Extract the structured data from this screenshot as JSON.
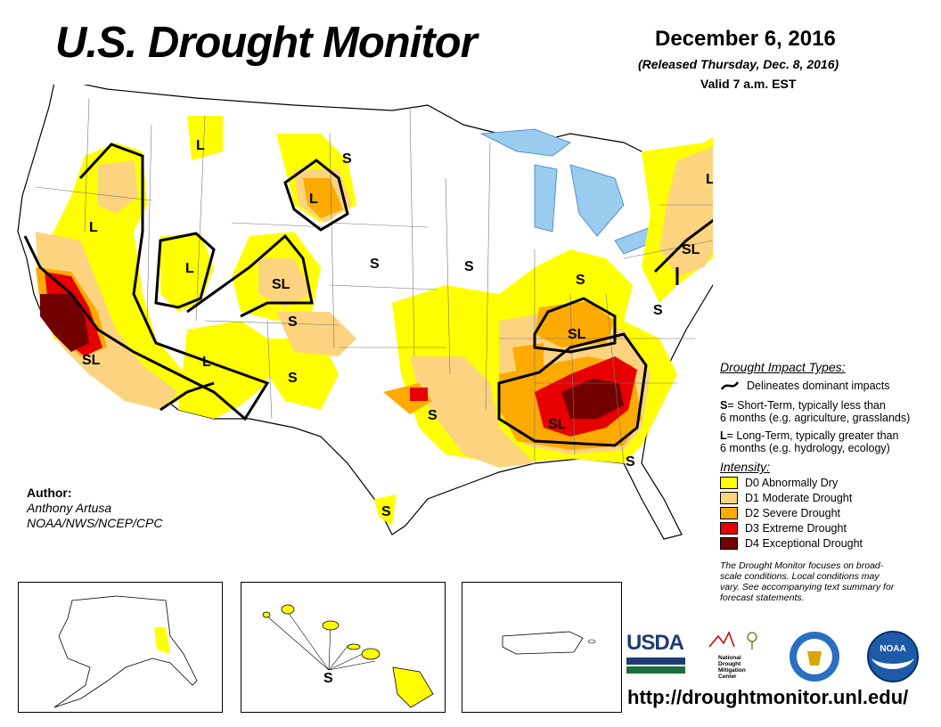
{
  "header": {
    "title": "U.S. Drought Monitor",
    "date": "December 6, 2016",
    "released": "(Released Thursday, Dec. 8, 2016)",
    "valid": "Valid 7 a.m. EST"
  },
  "map_labels": {
    "l_montana": "L",
    "s_northdakota": "S",
    "l_southdakota": "L",
    "l_oregon": "L",
    "l_utah": "L",
    "sl_colorado": "SL",
    "s_kansas": "S",
    "s_nebraska": "S",
    "s_colorado": "S",
    "sl_california": "SL",
    "l_arizona": "L",
    "s_newmexico": "S",
    "s_oklahoma": "S",
    "s_texas": "S",
    "s_illinois": "S",
    "sl_kentucky": "SL",
    "sl_alabama": "SL",
    "s_westvirginia": "S",
    "s_georgia": "S",
    "l_newengland": "L",
    "sl_newyork": "SL",
    "s_hawaii": "S"
  },
  "author": {
    "heading": "Author:",
    "name": "Anthony Artusa",
    "org": "NOAA/NWS/NCEP/CPC"
  },
  "legend": {
    "impact_title": "Drought Impact Types:",
    "delineates": "Delineates dominant impacts",
    "short_term_key": "S",
    "short_term_text": "= Short-Term, typically less than",
    "short_term_text2": "6 months (e.g. agriculture, grasslands)",
    "long_term_key": "L",
    "long_term_text": "= Long-Term, typically greater than",
    "long_term_text2": "6 months (e.g. hydrology, ecology)",
    "intensity_title": "Intensity:",
    "categories": [
      {
        "label": "D0 Abnormally Dry",
        "color": "#ffff00"
      },
      {
        "label": "D1 Moderate Drought",
        "color": "#fcd37f"
      },
      {
        "label": "D2 Severe Drought",
        "color": "#ffaa00"
      },
      {
        "label": "D3 Extreme Drought",
        "color": "#e60000"
      },
      {
        "label": "D4 Exceptional Drought",
        "color": "#730000"
      }
    ],
    "note1": "The Drought Monitor focuses on broad-",
    "note2": "scale conditions. Local conditions may",
    "note3": "vary. See accompanying text summary for",
    "note4": "forecast statements."
  },
  "logos": {
    "usda": "USDA",
    "ndmc1": "National",
    "ndmc2": "Drought",
    "ndmc3": "Mitigation",
    "ndmc4": "Center",
    "noaa": "NOAA"
  },
  "footer": {
    "url": "http://droughtmonitor.unl.edu/"
  }
}
